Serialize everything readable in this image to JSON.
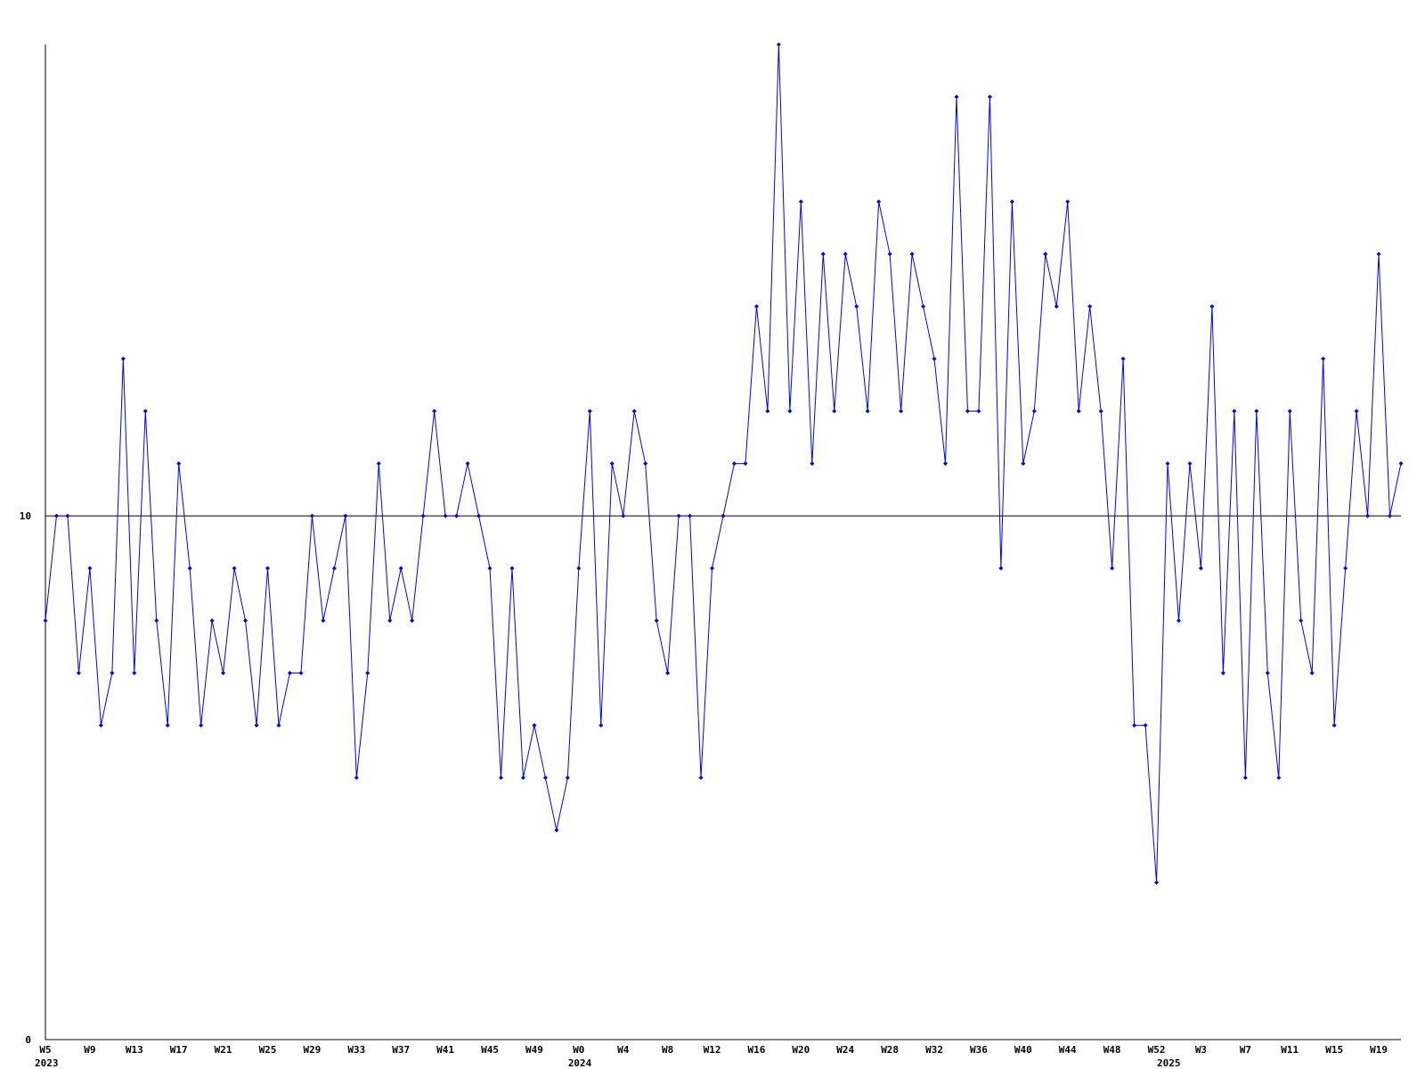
{
  "chart_data": {
    "type": "line",
    "categories": [
      "W5",
      null,
      null,
      null,
      "W9",
      null,
      null,
      null,
      "W13",
      null,
      null,
      null,
      "W17",
      null,
      null,
      null,
      "W21",
      null,
      null,
      null,
      "W25",
      null,
      null,
      null,
      "W29",
      null,
      null,
      null,
      "W33",
      null,
      null,
      null,
      "W37",
      null,
      null,
      null,
      "W41",
      null,
      null,
      null,
      "W45",
      null,
      null,
      null,
      "W49",
      null,
      null,
      null,
      "W0",
      null,
      null,
      null,
      "W4",
      null,
      null,
      null,
      "W8",
      null,
      null,
      null,
      "W12",
      null,
      null,
      null,
      "W16",
      null,
      null,
      null,
      "W20",
      null,
      null,
      null,
      "W24",
      null,
      null,
      null,
      "W28",
      null,
      null,
      null,
      "W32",
      null,
      null,
      null,
      "W36",
      null,
      null,
      null,
      "W40",
      null,
      null,
      null,
      "W44",
      null,
      null,
      null,
      "W48",
      null,
      null,
      null,
      "W52",
      null,
      null,
      null,
      "W3",
      null,
      null,
      null,
      "W7",
      null,
      null,
      null,
      "W11",
      null,
      null,
      null,
      "W15",
      null,
      null,
      null,
      "W19",
      null,
      null
    ],
    "x_group_labels": [
      {
        "index": 0,
        "label": "2023"
      },
      {
        "index": 48,
        "label": "2024"
      },
      {
        "index": 101,
        "label": "2025"
      }
    ],
    "series": [
      {
        "color": "#0000ff",
        "values": [
          8,
          10,
          10,
          7,
          9,
          6,
          7,
          13,
          7,
          12,
          8,
          6,
          11,
          9,
          6,
          8,
          7,
          9,
          8,
          6,
          9,
          6,
          7,
          7,
          10,
          8,
          9,
          10,
          5,
          7,
          11,
          8,
          9,
          8,
          10,
          12,
          10,
          10,
          11,
          10,
          9,
          5,
          9,
          5,
          6,
          5,
          4,
          5,
          9,
          12,
          6,
          11,
          10,
          12,
          11,
          8,
          7,
          10,
          10,
          5,
          9,
          10,
          11,
          11,
          14,
          12,
          19,
          12,
          16,
          11,
          15,
          12,
          15,
          14,
          12,
          16,
          15,
          12,
          15,
          14,
          13,
          11,
          18,
          12,
          12,
          18,
          9,
          16,
          11,
          12,
          15,
          14,
          16,
          12,
          14,
          12,
          9,
          13,
          6,
          6,
          3,
          11,
          8,
          11,
          9,
          14,
          7,
          12,
          5,
          12,
          7,
          5,
          12,
          8,
          7,
          13,
          6,
          9,
          12,
          10,
          15,
          10,
          11
        ]
      }
    ],
    "ylim": [
      0,
      19
    ],
    "yticks": [
      0,
      10
    ],
    "grid": true
  }
}
